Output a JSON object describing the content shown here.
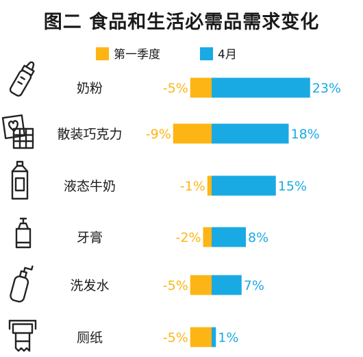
{
  "chart_data": {
    "type": "bar",
    "title": "图二 食品和生活必需品需求变化",
    "series": [
      {
        "name": "第一季度",
        "values": [
          -5,
          -9,
          -1,
          -2,
          -5,
          -5
        ]
      },
      {
        "name": "4月",
        "values": [
          23,
          18,
          15,
          8,
          7,
          1
        ]
      }
    ],
    "categories": [
      "奶粉",
      "散装巧克力",
      "液态牛奶",
      "牙膏",
      "洗发水",
      "厕纸"
    ],
    "value_labels": {
      "第一季度": [
        "-5%",
        "-9%",
        "-1%",
        "-2%",
        "-5%",
        "-5%"
      ],
      "4月": [
        "23%",
        "18%",
        "15%",
        "8%",
        "7%",
        "1%"
      ]
    },
    "legend_position": "top-center",
    "grid": false,
    "unit": "%"
  },
  "icons": [
    "baby-bottle-icon",
    "chocolate-icon",
    "milk-carton-icon",
    "toothpaste-icon",
    "shampoo-bottle-icon",
    "toilet-paper-icon"
  ],
  "colors": {
    "q1": "#FDB515",
    "april": "#1AAAE3",
    "text": "#1a1a1a",
    "icon": "#222222"
  }
}
